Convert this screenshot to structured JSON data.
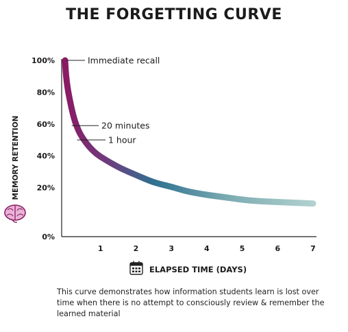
{
  "chart_data": {
    "type": "line",
    "title": "THE FORGETTING CURVE",
    "xlabel": "ELAPSED TIME (DAYS)",
    "ylabel": "MEMORY RETENTION",
    "xlim": [
      0,
      7
    ],
    "ylim": [
      0,
      100
    ],
    "x_ticks": [
      1,
      2,
      3,
      4,
      5,
      6,
      7
    ],
    "x_tick_labels": [
      "1",
      "2",
      "3",
      "4",
      "5",
      "6",
      "7"
    ],
    "y_ticks": [
      0,
      20,
      40,
      60,
      80,
      100
    ],
    "y_tick_labels": [
      "0%",
      "20%",
      "40%",
      "60%",
      "80%",
      "100%"
    ],
    "grid": false,
    "series": [
      {
        "x": [
          0,
          0.03,
          0.1,
          0.25,
          0.4,
          0.6,
          0.8,
          1,
          1.5,
          2,
          2.5,
          3,
          3.5,
          4,
          4.5,
          5,
          5.5,
          6,
          6.5,
          7
        ],
        "y": [
          100,
          90,
          79,
          64,
          55,
          48,
          43,
          39.5,
          33,
          28,
          23.5,
          20.5,
          17.5,
          15.5,
          14,
          12.5,
          11.5,
          11,
          10.5,
          10
        ]
      }
    ],
    "annotations": [
      {
        "text": "Immediate recall",
        "x": 0,
        "y": 100
      },
      {
        "text": "20 minutes",
        "x": 0.15,
        "y": 59
      },
      {
        "text": "1 hour",
        "x": 0.3,
        "y": 50
      }
    ],
    "colors": {
      "start": "#8b1a64",
      "middle": "#2f7190",
      "end": "#b2d1cf"
    }
  },
  "icons": {
    "y_axis": "brain-icon",
    "x_axis": "calendar-icon"
  },
  "caption": "This curve demonstrates how information students learn is lost over time when there is no attempt to consciously review & remember the learned material"
}
